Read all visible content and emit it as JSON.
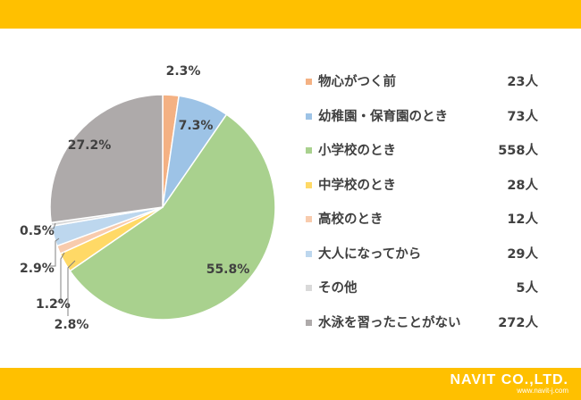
{
  "colors": {
    "bar": "#FFC000",
    "slice_stroke": "#ffffff",
    "leader": "#808080",
    "label_text": "#404040"
  },
  "chart_data": {
    "type": "pie",
    "start": "12 o'clock",
    "direction": "clockwise",
    "unit_label": "人",
    "slices": [
      {
        "name": "物心がつく前",
        "count": "23人",
        "value": 2.3,
        "label": "2.3%",
        "color": "#F4B183"
      },
      {
        "name": "幼稚園・保育園のとき",
        "count": "73人",
        "value": 7.3,
        "label": "7.3%",
        "color": "#9DC3E6"
      },
      {
        "name": "小学校のとき",
        "count": "558人",
        "value": 55.8,
        "label": "55.8%",
        "color": "#A9D18E"
      },
      {
        "name": "中学校のとき",
        "count": "28人",
        "value": 2.8,
        "label": "2.8%",
        "color": "#FFD966"
      },
      {
        "name": "高校のとき",
        "count": "12人",
        "value": 1.2,
        "label": "1.2%",
        "color": "#F8CBAD"
      },
      {
        "name": "大人になってから",
        "count": "29人",
        "value": 2.9,
        "label": "2.9%",
        "color": "#BDD7EE"
      },
      {
        "name": "その他",
        "count": "5人",
        "value": 0.5,
        "label": "0.5%",
        "color": "#D9D9D9"
      },
      {
        "name": "水泳を習ったことがない",
        "count": "272人",
        "value": 27.2,
        "label": "27.2%",
        "color": "#AEAAAA"
      }
    ]
  },
  "logo": {
    "main": "NAVIT CO.,LTD.",
    "url": "www.navit-j.com"
  }
}
